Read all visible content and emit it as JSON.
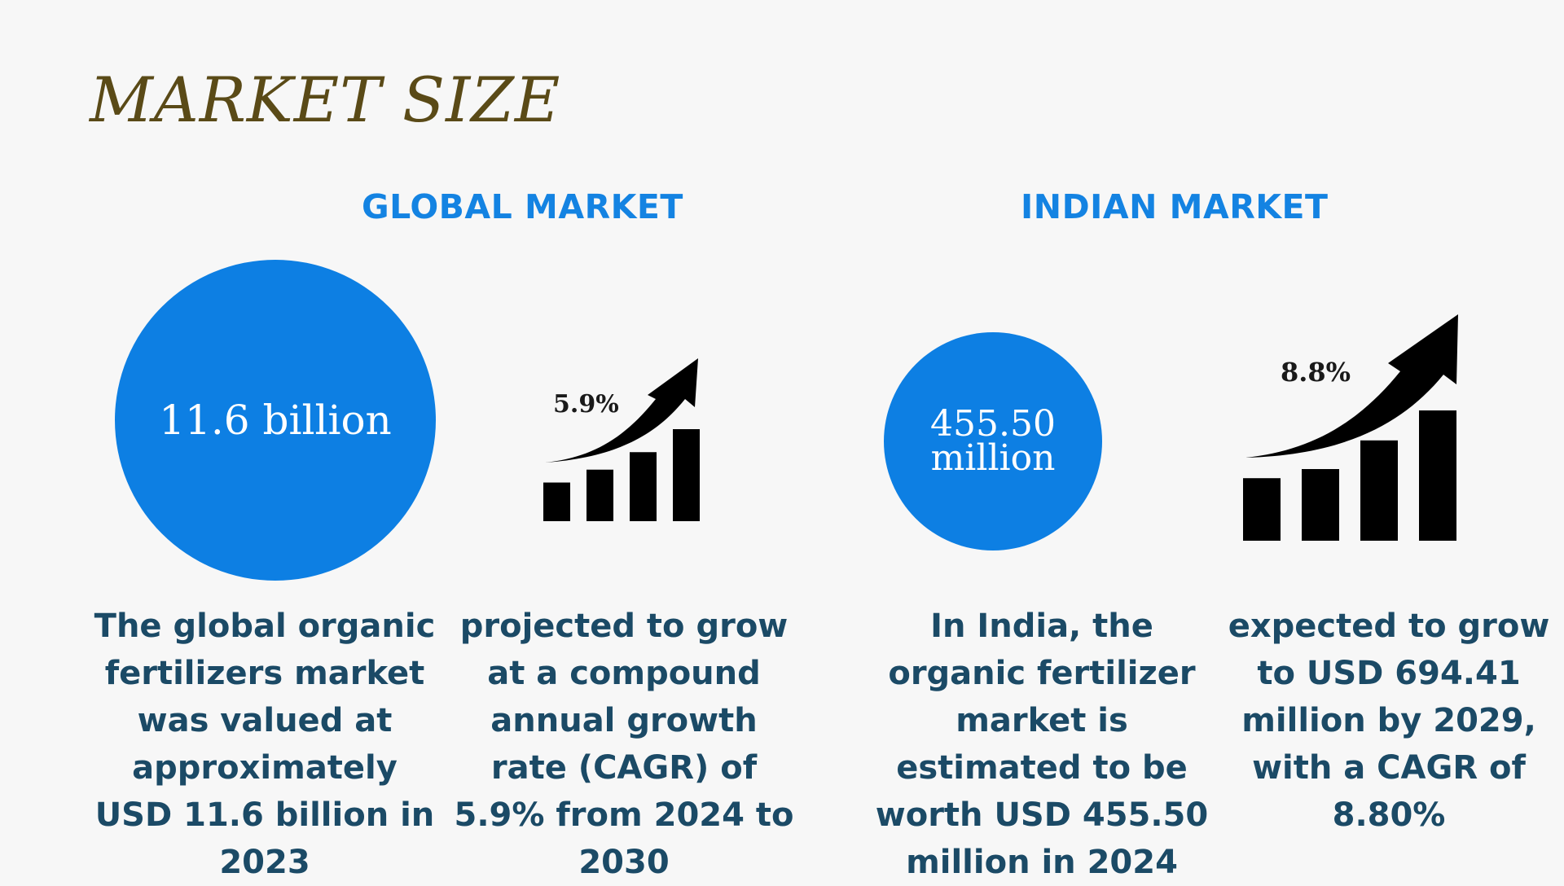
{
  "title": "MARKET SIZE",
  "global": {
    "heading": "GLOBAL MARKET",
    "circle_value": "11.6 billion",
    "growth_label": "5.9%",
    "bars": [
      0.42,
      0.56,
      0.75,
      1.0
    ],
    "description": "The global organic fertilizers market was valued at approximately USD 11.6 billion in 2023",
    "growth_description": "projected to grow at a compound annual growth rate (CAGR) of 5.9% from 2024 to 2030"
  },
  "india": {
    "heading": "INDIAN MARKET",
    "circle_value_line1": "455.50",
    "circle_value_line2": "million",
    "growth_label": "8.8%",
    "bars": [
      0.48,
      0.55,
      0.77,
      1.0
    ],
    "description": "In India, the organic fertilizer market is estimated to be worth USD 455.50 million in 2024",
    "growth_description": "expected to grow to USD 694.41 million by 2029, with a CAGR of 8.80%"
  },
  "colors": {
    "title": "#5a4a17",
    "heading": "#1483e2",
    "circle": "#0d7fe3",
    "body_text": "#1b4a66",
    "bars": "#000000"
  },
  "icons": [
    "growth-chart-icon",
    "growth-chart-icon"
  ]
}
